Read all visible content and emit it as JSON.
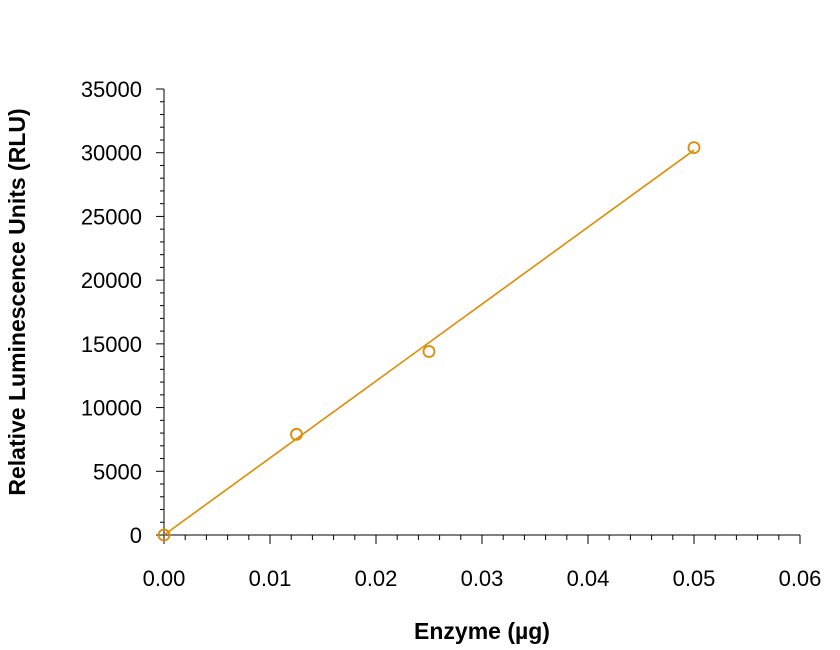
{
  "chart_data": {
    "type": "scatter",
    "title": "",
    "xlabel": "Enzyme (µg)",
    "ylabel": "Relative Luminescence Units (RLU)",
    "xlim": [
      0,
      0.06
    ],
    "ylim": [
      0,
      35000
    ],
    "xticks": [
      "0.00",
      "0.01",
      "0.02",
      "0.03",
      "0.04",
      "0.05",
      "0.06"
    ],
    "yticks": [
      "0",
      "5000",
      "10000",
      "15000",
      "20000",
      "25000",
      "30000",
      "35000"
    ],
    "grid": false,
    "legend": "none",
    "series": [
      {
        "x": [
          0,
          0.0125,
          0.025,
          0.05
        ],
        "y": [
          0,
          7900,
          14400,
          30400
        ],
        "marker": "open-circle",
        "color": "#E08A00",
        "fit_line": {
          "x": [
            0,
            0.05
          ],
          "y": [
            0,
            30200
          ]
        }
      }
    ]
  }
}
